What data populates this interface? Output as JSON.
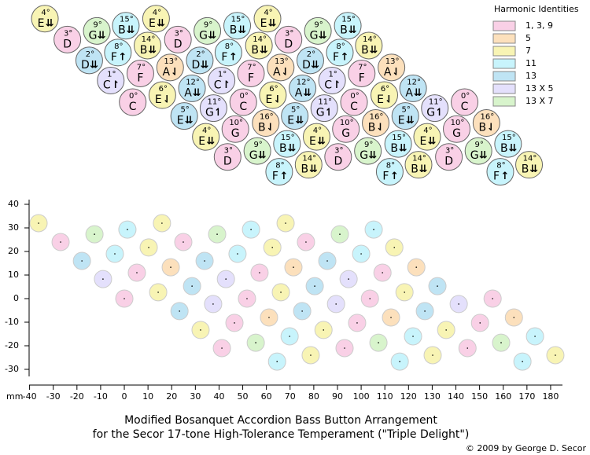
{
  "chart_data": {
    "type": "scatter",
    "title": "Modified Bosanquet Accordion Bass Button Arrangement",
    "subtitle": "for the Secor 17-tone High-Tolerance Temperament (\"Triple Delight\")",
    "legend_title": "Harmonic Identities",
    "legend": "top-right",
    "x_label": "mm",
    "credit": "© 2009 by George D. Secor",
    "xlim": [
      -40,
      185
    ],
    "ylim": [
      -33,
      42
    ],
    "xticks": [
      -40,
      -30,
      -20,
      -10,
      0,
      10,
      20,
      30,
      40,
      50,
      60,
      70,
      80,
      90,
      100,
      110,
      120,
      130,
      140,
      150,
      160,
      170,
      180
    ],
    "yticks": [
      -30,
      -20,
      -10,
      0,
      10,
      20,
      30,
      40
    ],
    "series": [
      {
        "name": "1, 3, 9",
        "color": "#f9d0e6",
        "x": [
          -26.9,
          24.9,
          76.7,
          5.3,
          57.1,
          109,
          0,
          51.8,
          103.7,
          155.5,
          46.5,
          98.3,
          150.2,
          41.2,
          93,
          144.9
        ],
        "y": [
          24,
          24,
          24,
          11,
          11,
          11,
          0,
          0,
          0,
          0,
          -10.3,
          -10.3,
          -10.3,
          -21,
          -21,
          -21
        ],
        "degrees": [
          "3°",
          "3°",
          "3°",
          "7°",
          "7°",
          "7°",
          "0°",
          "0°",
          "0°",
          "0°",
          "10°",
          "10°",
          "10°",
          "3°",
          "3°",
          "3°"
        ],
        "notes": [
          "D",
          "D",
          "D",
          "F",
          "F",
          "F",
          "C",
          "C",
          "C",
          "C",
          "G",
          "G",
          "G",
          "D",
          "D",
          "D"
        ],
        "accidentals": [
          null,
          null,
          null,
          null,
          null,
          null,
          null,
          null,
          null,
          null,
          null,
          null,
          null,
          null,
          null,
          null
        ]
      },
      {
        "name": "5",
        "color": "#fce0bc",
        "x": [
          19.6,
          71.4,
          123.3,
          61.1,
          112.6,
          164.5
        ],
        "y": [
          13.3,
          13.3,
          13.3,
          -8,
          -8,
          -8
        ],
        "degrees": [
          "13°",
          "13°",
          "13°",
          "16°",
          "16°",
          "16°"
        ],
        "notes": [
          "A",
          "A",
          "A",
          "B",
          "B",
          "B"
        ],
        "accidentals": [
          "⇃",
          "⇃",
          "⇃",
          "⇃",
          "⇃",
          "⇃"
        ]
      },
      {
        "name": "7",
        "color": "#f8f4b4",
        "x": [
          -36.2,
          15.9,
          68.1,
          10.3,
          62.5,
          114,
          14.3,
          66.1,
          118.3,
          32.2,
          84.1,
          135.9,
          78.7,
          130.2,
          182
        ],
        "y": [
          32,
          32,
          32,
          21.7,
          21.7,
          21.7,
          2.7,
          2.7,
          2.7,
          -13.3,
          -13.3,
          -13.3,
          -24,
          -24,
          -24
        ],
        "degrees": [
          "4°",
          "4°",
          "4°",
          "14°",
          "14°",
          "14°",
          "6°",
          "6°",
          "6°",
          "4°",
          "4°",
          "4°",
          "14°",
          "14°",
          "14°"
        ],
        "notes": [
          "E",
          "E",
          "E",
          "B",
          "B",
          "B",
          "E",
          "E",
          "E",
          "E",
          "E",
          "E",
          "B",
          "B",
          "B"
        ],
        "accidentals": [
          "⇊",
          "⇊",
          "⇊",
          "⇊",
          "⇊",
          "⇊",
          "⇃",
          "⇃",
          "⇃",
          "⇊",
          "⇊",
          "⇊",
          "⇊",
          "⇊",
          "⇊"
        ]
      },
      {
        "name": "11",
        "color": "#c8f4fc",
        "x": [
          1.3,
          53.5,
          105.3,
          -4,
          47.8,
          100,
          69.8,
          121.9,
          173.4,
          64.5,
          116.3,
          168.1
        ],
        "y": [
          29.3,
          29.3,
          29.3,
          19,
          19,
          19,
          -16,
          -16,
          -16,
          -26.7,
          -26.7,
          -26.7
        ],
        "degrees": [
          "15°",
          "15°",
          "15°",
          "8°",
          "8°",
          "8°",
          "15°",
          "15°",
          "15°",
          "8°",
          "8°",
          "8°"
        ],
        "notes": [
          "B",
          "B",
          "B",
          "F",
          "F",
          "F",
          "B",
          "B",
          "B",
          "F",
          "F",
          "F"
        ],
        "accidentals": [
          "⇊",
          "⇊",
          "⇊",
          "↑",
          "↑",
          "↑",
          "⇊",
          "⇊",
          "⇊",
          "↑",
          "↑",
          "↑"
        ]
      },
      {
        "name": "13",
        "color": "#bfe4f4",
        "x": [
          -17.9,
          33.9,
          85.7,
          28.6,
          80.4,
          132.2,
          23.3,
          75.1,
          126.9
        ],
        "y": [
          16,
          16,
          16,
          5.3,
          5.3,
          5.3,
          -5.3,
          -5.3,
          -5.3
        ],
        "degrees": [
          "2°",
          "2°",
          "2°",
          "12°",
          "12°",
          "12°",
          "5°",
          "5°",
          "5°"
        ],
        "notes": [
          "D",
          "D",
          "D",
          "A",
          "A",
          "A",
          "E",
          "E",
          "E"
        ],
        "accidentals": [
          "⇊",
          "⇊",
          "⇊",
          "⇊",
          "⇊",
          "⇊",
          "⇊",
          "⇊",
          "⇊"
        ]
      },
      {
        "name": "13 X 5",
        "color": "#e4e0fc",
        "x": [
          -9,
          42.9,
          94.7,
          37.5,
          89.4,
          141.2
        ],
        "y": [
          8.3,
          8.3,
          8.3,
          -2.3,
          -2.3,
          -2.3
        ],
        "degrees": [
          "1°",
          "1°",
          "1°",
          "11°",
          "11°",
          "11°"
        ],
        "notes": [
          "C",
          "C",
          "C",
          "G",
          "G",
          "G"
        ],
        "accidentals": [
          "↾",
          "↾",
          "↾",
          "↿",
          "↿",
          "↿"
        ]
      },
      {
        "name": "13 X 7",
        "color": "#d8f4cc",
        "x": [
          -12.6,
          39.2,
          91,
          55.5,
          107.3,
          159.1
        ],
        "y": [
          27.3,
          27.3,
          27.3,
          -18.7,
          -18.7,
          -18.7
        ],
        "degrees": [
          "9°",
          "9°",
          "9°",
          "9°",
          "9°",
          "9°"
        ],
        "notes": [
          "G",
          "G",
          "G",
          "G",
          "G",
          "G"
        ],
        "accidentals": [
          "⇊",
          "⇊",
          "⇊",
          "⇊",
          "⇊",
          "⇊"
        ]
      }
    ]
  }
}
